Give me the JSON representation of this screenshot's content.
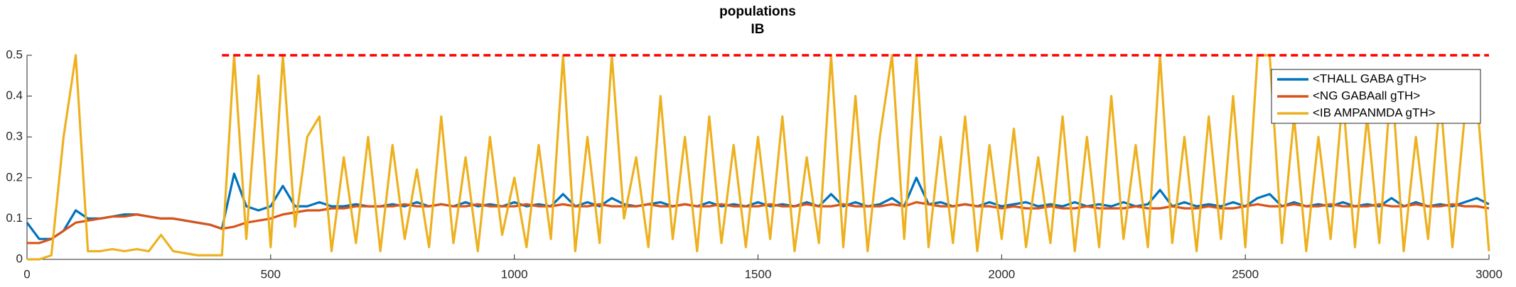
{
  "chart_data": {
    "type": "line",
    "title": "populations",
    "subtitle": "IB",
    "xlim": [
      0,
      3000
    ],
    "ylim": [
      0,
      0.5
    ],
    "xticks": [
      0,
      500,
      1000,
      1500,
      2000,
      2500,
      3000
    ],
    "yticks": [
      0,
      0.1,
      0.2,
      0.3,
      0.4,
      0.5
    ],
    "legend": "upper right",
    "x": [
      0,
      25,
      50,
      75,
      100,
      125,
      150,
      175,
      200,
      225,
      250,
      275,
      300,
      325,
      350,
      375,
      400,
      425,
      450,
      475,
      500,
      525,
      550,
      575,
      600,
      625,
      650,
      675,
      700,
      725,
      750,
      775,
      800,
      825,
      850,
      875,
      900,
      925,
      950,
      975,
      1000,
      1025,
      1050,
      1075,
      1100,
      1125,
      1150,
      1175,
      1200,
      1225,
      1250,
      1275,
      1300,
      1325,
      1350,
      1375,
      1400,
      1425,
      1450,
      1475,
      1500,
      1525,
      1550,
      1575,
      1600,
      1625,
      1650,
      1675,
      1700,
      1725,
      1750,
      1775,
      1800,
      1825,
      1850,
      1875,
      1900,
      1925,
      1950,
      1975,
      2000,
      2025,
      2050,
      2075,
      2100,
      2125,
      2150,
      2175,
      2200,
      2225,
      2250,
      2275,
      2300,
      2325,
      2350,
      2375,
      2400,
      2425,
      2450,
      2475,
      2500,
      2525,
      2550,
      2575,
      2600,
      2625,
      2650,
      2675,
      2700,
      2725,
      2750,
      2775,
      2800,
      2825,
      2850,
      2875,
      2900,
      2925,
      2950,
      2975,
      3000
    ],
    "series": [
      {
        "name": "<THALL GABA gTH>",
        "color": "#0072bd",
        "values": [
          0.09,
          0.05,
          0.05,
          0.07,
          0.12,
          0.1,
          0.1,
          0.105,
          0.11,
          0.11,
          0.105,
          0.1,
          0.1,
          0.095,
          0.09,
          0.085,
          0.075,
          0.21,
          0.13,
          0.12,
          0.13,
          0.18,
          0.13,
          0.13,
          0.14,
          0.13,
          0.13,
          0.135,
          0.13,
          0.13,
          0.135,
          0.13,
          0.14,
          0.13,
          0.135,
          0.13,
          0.14,
          0.13,
          0.135,
          0.13,
          0.14,
          0.13,
          0.135,
          0.13,
          0.16,
          0.13,
          0.14,
          0.13,
          0.15,
          0.135,
          0.13,
          0.135,
          0.14,
          0.13,
          0.135,
          0.13,
          0.14,
          0.13,
          0.135,
          0.13,
          0.14,
          0.13,
          0.135,
          0.13,
          0.14,
          0.13,
          0.16,
          0.13,
          0.14,
          0.13,
          0.135,
          0.15,
          0.13,
          0.2,
          0.135,
          0.14,
          0.13,
          0.135,
          0.13,
          0.14,
          0.13,
          0.135,
          0.14,
          0.13,
          0.135,
          0.13,
          0.14,
          0.13,
          0.135,
          0.13,
          0.14,
          0.13,
          0.135,
          0.17,
          0.13,
          0.14,
          0.13,
          0.135,
          0.13,
          0.14,
          0.13,
          0.15,
          0.16,
          0.13,
          0.14,
          0.13,
          0.135,
          0.13,
          0.14,
          0.13,
          0.135,
          0.13,
          0.15,
          0.13,
          0.14,
          0.13,
          0.135,
          0.13,
          0.14,
          0.15,
          0.135
        ]
      },
      {
        "name": "<NG GABAall gTH>",
        "color": "#d95319",
        "values": [
          0.04,
          0.04,
          0.05,
          0.07,
          0.09,
          0.095,
          0.1,
          0.105,
          0.105,
          0.11,
          0.105,
          0.1,
          0.1,
          0.095,
          0.09,
          0.085,
          0.075,
          0.08,
          0.09,
          0.095,
          0.1,
          0.11,
          0.115,
          0.12,
          0.12,
          0.125,
          0.125,
          0.13,
          0.13,
          0.13,
          0.13,
          0.135,
          0.13,
          0.13,
          0.135,
          0.13,
          0.13,
          0.135,
          0.13,
          0.13,
          0.13,
          0.135,
          0.13,
          0.13,
          0.135,
          0.13,
          0.13,
          0.135,
          0.13,
          0.13,
          0.13,
          0.135,
          0.13,
          0.13,
          0.135,
          0.13,
          0.13,
          0.135,
          0.13,
          0.13,
          0.13,
          0.135,
          0.13,
          0.13,
          0.135,
          0.13,
          0.13,
          0.135,
          0.13,
          0.13,
          0.13,
          0.135,
          0.13,
          0.14,
          0.135,
          0.13,
          0.13,
          0.135,
          0.13,
          0.13,
          0.125,
          0.13,
          0.125,
          0.125,
          0.13,
          0.125,
          0.125,
          0.13,
          0.125,
          0.125,
          0.125,
          0.13,
          0.125,
          0.125,
          0.13,
          0.125,
          0.125,
          0.13,
          0.125,
          0.125,
          0.13,
          0.135,
          0.13,
          0.13,
          0.135,
          0.13,
          0.13,
          0.135,
          0.13,
          0.13,
          0.13,
          0.135,
          0.13,
          0.13,
          0.135,
          0.13,
          0.13,
          0.135,
          0.13,
          0.13,
          0.125
        ]
      },
      {
        "name": "<IB AMPANMDA gTH>",
        "color": "#edb120",
        "values": [
          0,
          0,
          0.01,
          0.3,
          0.5,
          0.02,
          0.02,
          0.025,
          0.02,
          0.025,
          0.02,
          0.06,
          0.02,
          0.015,
          0.01,
          0.01,
          0.01,
          0.5,
          0.05,
          0.45,
          0.03,
          0.5,
          0.08,
          0.3,
          0.35,
          0.02,
          0.25,
          0.04,
          0.3,
          0.02,
          0.28,
          0.05,
          0.22,
          0.03,
          0.35,
          0.04,
          0.25,
          0.02,
          0.3,
          0.06,
          0.2,
          0.03,
          0.28,
          0.05,
          0.5,
          0.02,
          0.3,
          0.04,
          0.5,
          0.1,
          0.25,
          0.03,
          0.4,
          0.05,
          0.3,
          0.02,
          0.35,
          0.04,
          0.28,
          0.03,
          0.3,
          0.05,
          0.35,
          0.02,
          0.25,
          0.04,
          0.5,
          0.03,
          0.4,
          0.02,
          0.3,
          0.5,
          0.05,
          0.5,
          0.03,
          0.3,
          0.04,
          0.35,
          0.02,
          0.28,
          0.05,
          0.32,
          0.03,
          0.25,
          0.04,
          0.35,
          0.02,
          0.3,
          0.03,
          0.4,
          0.05,
          0.28,
          0.03,
          0.5,
          0.04,
          0.3,
          0.02,
          0.35,
          0.05,
          0.4,
          0.03,
          0.5,
          0.5,
          0.04,
          0.35,
          0.02,
          0.3,
          0.05,
          0.4,
          0.03,
          0.35,
          0.04,
          0.45,
          0.02,
          0.3,
          0.05,
          0.4,
          0.03,
          0.35,
          0.4,
          0.02
        ]
      }
    ],
    "reference_line": {
      "y": 0.5,
      "x": [
        400,
        3000
      ],
      "color": "#ff0000"
    }
  }
}
